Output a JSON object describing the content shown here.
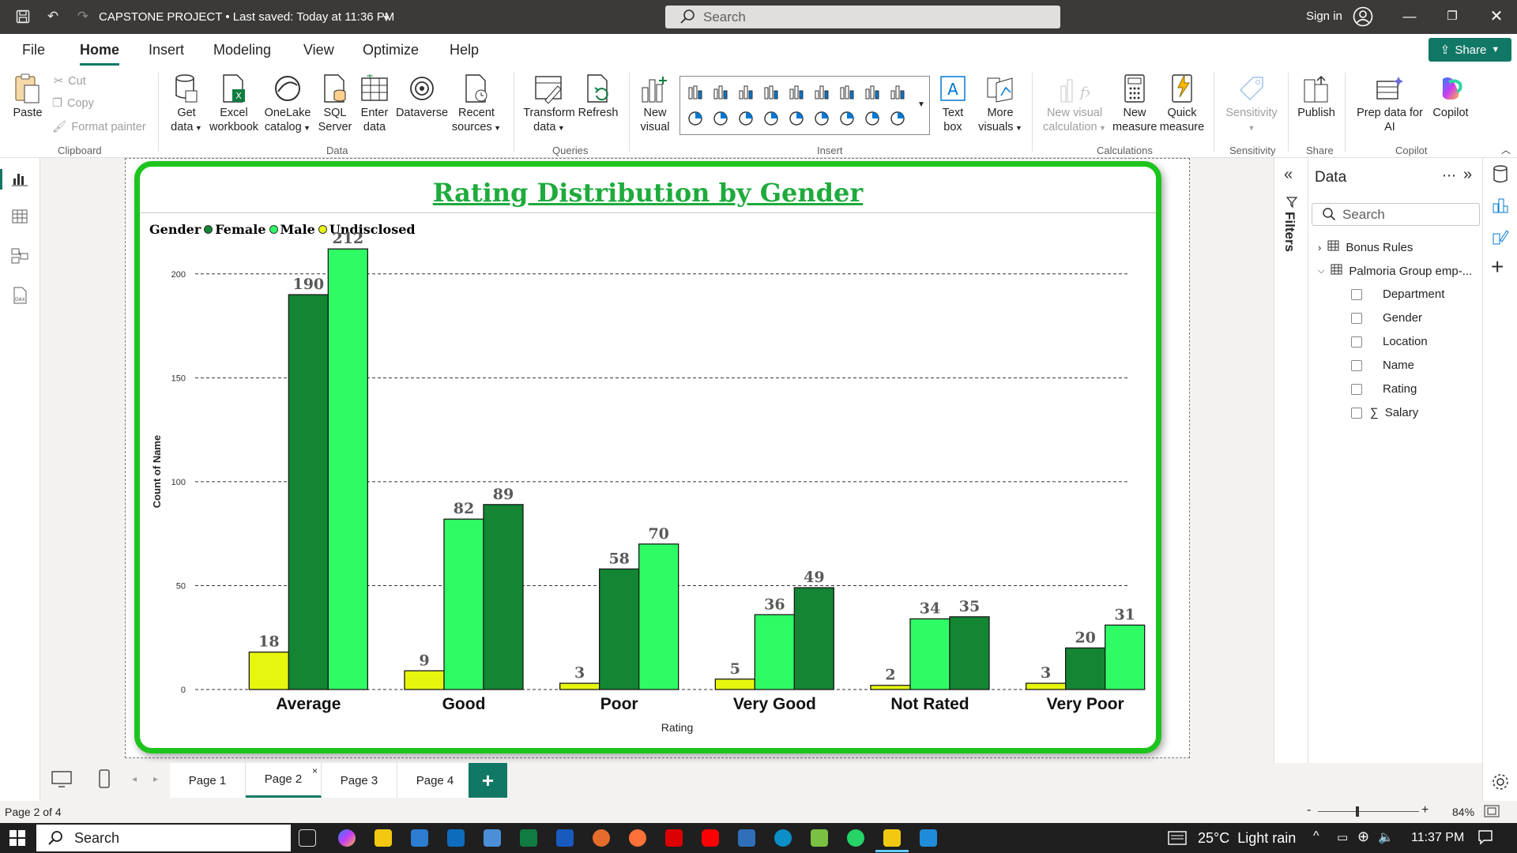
{
  "titlebar": {
    "title": "CAPSTONE PROJECT • Last saved: Today at 11:36 PM",
    "search_placeholder": "Search",
    "sign_in": "Sign in"
  },
  "menu": {
    "tabs": [
      "File",
      "Home",
      "Insert",
      "Modeling",
      "View",
      "Optimize",
      "Help"
    ],
    "active": "Home",
    "share_label": "Share"
  },
  "ribbon": {
    "clipboard": {
      "paste": "Paste",
      "cut": "Cut",
      "copy": "Copy",
      "format_painter": "Format painter",
      "label": "Clipboard"
    },
    "data": {
      "get_data": "Get data",
      "excel": "Excel workbook",
      "onelake": "OneLake catalog",
      "sql": "SQL Server",
      "enter": "Enter data",
      "dataverse": "Dataverse",
      "recent": "Recent sources",
      "label": "Data"
    },
    "queries": {
      "transform": "Transform data",
      "refresh": "Refresh",
      "label": "Queries"
    },
    "insert": {
      "new_visual": "New visual",
      "text_box": "Text box",
      "more_visuals": "More visuals",
      "label": "Insert"
    },
    "calculations": {
      "new_visual_calc": "New visual calculation",
      "new_measure": "New measure",
      "quick_measure": "Quick measure",
      "label": "Calculations"
    },
    "sensitivity": {
      "button": "Sensitivity",
      "label": "Sensitivity"
    },
    "share": {
      "publish": "Publish",
      "label": "Share"
    },
    "copilot": {
      "prep": "Prep data for AI",
      "copilot": "Copilot",
      "label": "Copilot"
    }
  },
  "chart_data": {
    "type": "bar",
    "title": "Rating Distribution by Gender",
    "legend_title": "Gender",
    "legend_position": "top-left",
    "xlabel": "Rating",
    "ylabel": "Count of Name",
    "ylim": [
      0,
      225
    ],
    "yticks": [
      0,
      50,
      100,
      150,
      200
    ],
    "grid": true,
    "categories": [
      "Average",
      "Good",
      "Poor",
      "Very Good",
      "Not Rated",
      "Very Poor"
    ],
    "series": [
      {
        "name": "Female",
        "color": "#138533"
      },
      {
        "name": "Male",
        "color": "#2ffc64"
      },
      {
        "name": "Undisclosed",
        "color": "#e7f60f"
      }
    ],
    "groups": [
      {
        "category": "Average",
        "bars": [
          {
            "series": "Undisclosed",
            "value": 18
          },
          {
            "series": "Female",
            "value": 190
          },
          {
            "series": "Male",
            "value": 212
          }
        ]
      },
      {
        "category": "Good",
        "bars": [
          {
            "series": "Undisclosed",
            "value": 9
          },
          {
            "series": "Male",
            "value": 82
          },
          {
            "series": "Female",
            "value": 89
          }
        ]
      },
      {
        "category": "Poor",
        "bars": [
          {
            "series": "Undisclosed",
            "value": 3
          },
          {
            "series": "Female",
            "value": 58
          },
          {
            "series": "Male",
            "value": 70
          }
        ]
      },
      {
        "category": "Very Good",
        "bars": [
          {
            "series": "Undisclosed",
            "value": 5
          },
          {
            "series": "Male",
            "value": 36
          },
          {
            "series": "Female",
            "value": 49
          }
        ]
      },
      {
        "category": "Not Rated",
        "bars": [
          {
            "series": "Undisclosed",
            "value": 2
          },
          {
            "series": "Male",
            "value": 34
          },
          {
            "series": "Female",
            "value": 35
          }
        ]
      },
      {
        "category": "Very Poor",
        "bars": [
          {
            "series": "Undisclosed",
            "value": 3
          },
          {
            "series": "Female",
            "value": 20
          },
          {
            "series": "Male",
            "value": 31
          }
        ]
      }
    ]
  },
  "filters_label": "Filters",
  "data_pane": {
    "title": "Data",
    "search_placeholder": "Search",
    "tables": [
      {
        "name": "Bonus Rules",
        "expanded": false
      },
      {
        "name": "Palmoria Group emp-...",
        "expanded": true
      }
    ],
    "fields": [
      "Department",
      "Gender",
      "Location",
      "Name",
      "Rating",
      "Salary"
    ]
  },
  "pages": {
    "tabs": [
      "Page 1",
      "Page 2",
      "Page 3",
      "Page 4"
    ],
    "active": "Page 2",
    "add_label": "+"
  },
  "status": {
    "page_info": "Page 2 of 4",
    "zoom": "84%"
  },
  "taskbar": {
    "search": "Search",
    "weather": "25°C  Light rain",
    "time": "11:37 PM"
  }
}
